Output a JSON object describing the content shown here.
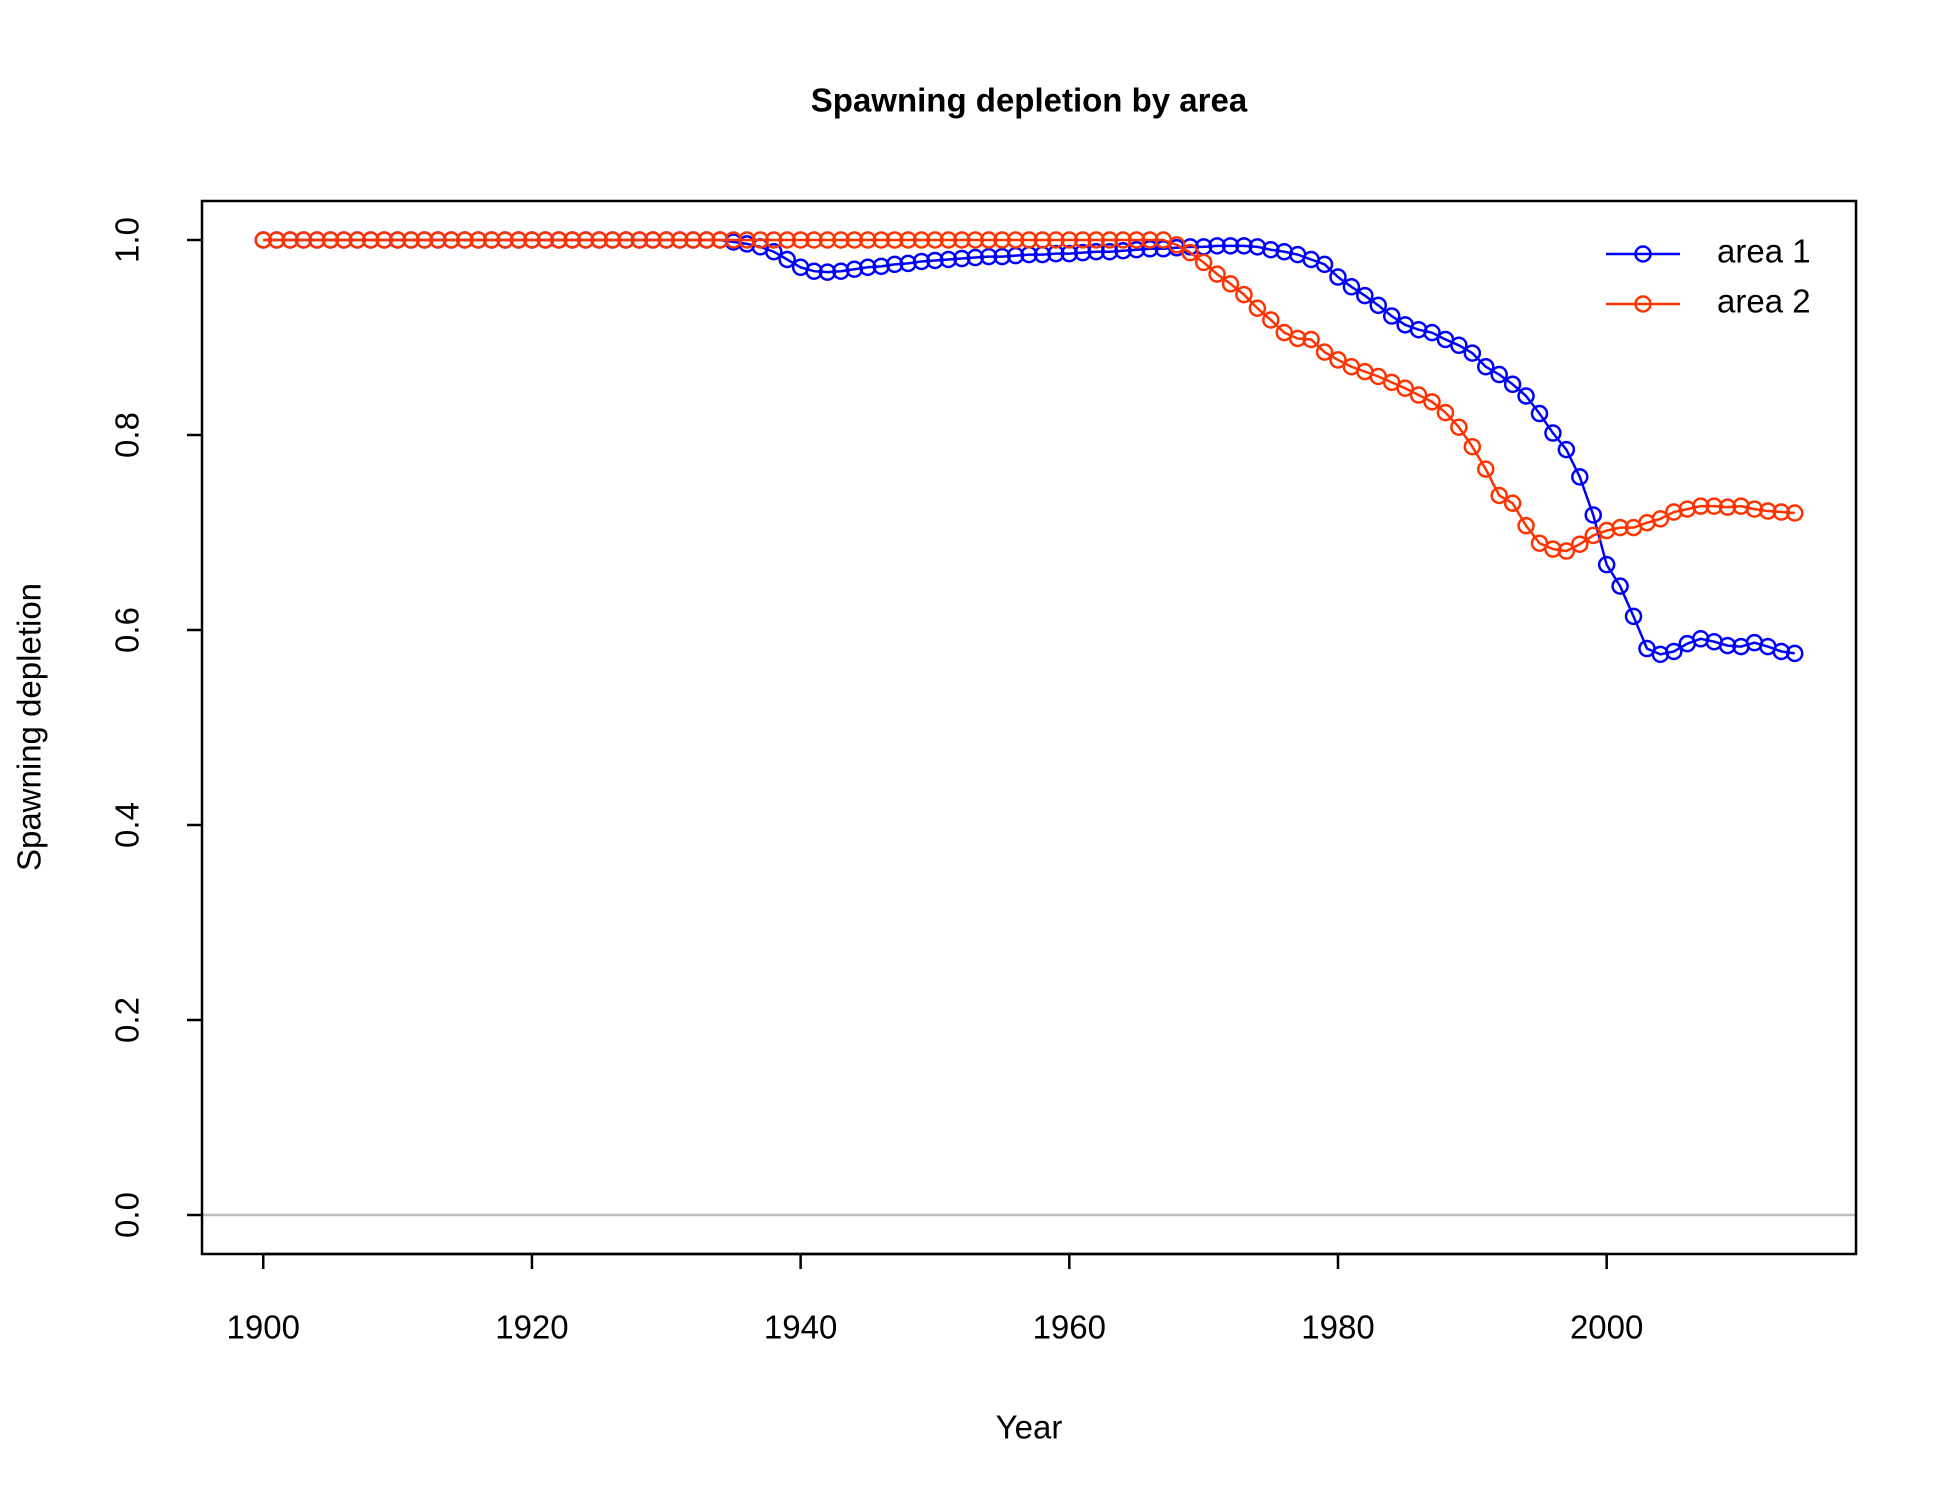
{
  "chart_data": {
    "type": "line",
    "title": "Spawning depletion by area",
    "x_label": "Year",
    "y_label": "Spawning depletion",
    "x": [
      1900,
      1901,
      1902,
      1903,
      1904,
      1905,
      1906,
      1907,
      1908,
      1909,
      1910,
      1911,
      1912,
      1913,
      1914,
      1915,
      1916,
      1917,
      1918,
      1919,
      1920,
      1921,
      1922,
      1923,
      1924,
      1925,
      1926,
      1927,
      1928,
      1929,
      1930,
      1931,
      1932,
      1933,
      1934,
      1935,
      1936,
      1937,
      1938,
      1939,
      1940,
      1941,
      1942,
      1943,
      1944,
      1945,
      1946,
      1947,
      1948,
      1949,
      1950,
      1951,
      1952,
      1953,
      1954,
      1955,
      1956,
      1957,
      1958,
      1959,
      1960,
      1961,
      1962,
      1963,
      1964,
      1965,
      1966,
      1967,
      1968,
      1969,
      1970,
      1971,
      1972,
      1973,
      1974,
      1975,
      1976,
      1977,
      1978,
      1979,
      1980,
      1981,
      1982,
      1983,
      1984,
      1985,
      1986,
      1987,
      1988,
      1989,
      1990,
      1991,
      1992,
      1993,
      1994,
      1995,
      1996,
      1997,
      1998,
      1999,
      2000,
      2001,
      2002,
      2003,
      2004,
      2005,
      2006,
      2007,
      2008,
      2009,
      2010,
      2011,
      2012,
      2013,
      2014
    ],
    "series": [
      {
        "name": "area 1",
        "color": "#0000ff",
        "values": [
          1,
          1,
          1,
          1,
          1,
          1,
          1,
          1,
          1,
          1,
          1,
          1,
          1,
          1,
          1,
          1,
          1,
          1,
          1,
          1,
          1,
          1,
          1,
          1,
          1,
          1,
          1,
          1,
          1,
          1,
          1,
          1,
          1,
          1,
          1,
          0.998,
          0.996,
          0.993,
          0.988,
          0.98,
          0.972,
          0.968,
          0.967,
          0.968,
          0.97,
          0.972,
          0.973,
          0.975,
          0.976,
          0.978,
          0.979,
          0.98,
          0.981,
          0.982,
          0.983,
          0.983,
          0.984,
          0.985,
          0.985,
          0.986,
          0.986,
          0.987,
          0.988,
          0.988,
          0.989,
          0.99,
          0.991,
          0.991,
          0.992,
          0.993,
          0.993,
          0.994,
          0.994,
          0.994,
          0.993,
          0.99,
          0.988,
          0.985,
          0.98,
          0.975,
          0.962,
          0.952,
          0.943,
          0.933,
          0.922,
          0.913,
          0.908,
          0.905,
          0.898,
          0.892,
          0.884,
          0.87,
          0.862,
          0.852,
          0.84,
          0.822,
          0.802,
          0.785,
          0.757,
          0.718,
          0.667,
          0.645,
          0.614,
          0.581,
          0.575,
          0.578,
          0.586,
          0.591,
          0.588,
          0.584,
          0.583,
          0.587,
          0.583,
          0.578,
          0.576
        ]
      },
      {
        "name": "area 2",
        "color": "#ff3300",
        "values": [
          1,
          1,
          1,
          1,
          1,
          1,
          1,
          1,
          1,
          1,
          1,
          1,
          1,
          1,
          1,
          1,
          1,
          1,
          1,
          1,
          1,
          1,
          1,
          1,
          1,
          1,
          1,
          1,
          1,
          1,
          1,
          1,
          1,
          1,
          1,
          1,
          1,
          1,
          1,
          1,
          1,
          1,
          1,
          1,
          1,
          1,
          1,
          1,
          1,
          1,
          1,
          1,
          1,
          1,
          1,
          1,
          1,
          1,
          1,
          1,
          1,
          1,
          1,
          1,
          1,
          1,
          1,
          1,
          0.995,
          0.987,
          0.977,
          0.965,
          0.955,
          0.944,
          0.93,
          0.918,
          0.905,
          0.899,
          0.898,
          0.885,
          0.877,
          0.87,
          0.865,
          0.86,
          0.854,
          0.848,
          0.841,
          0.834,
          0.823,
          0.808,
          0.788,
          0.765,
          0.738,
          0.73,
          0.707,
          0.689,
          0.683,
          0.681,
          0.688,
          0.697,
          0.702,
          0.705,
          0.705,
          0.71,
          0.714,
          0.721,
          0.724,
          0.727,
          0.727,
          0.726,
          0.727,
          0.724,
          0.722,
          0.721,
          0.72
        ]
      }
    ],
    "xlim": [
      1895.44,
      2018.56
    ],
    "xticks": [
      1900,
      1920,
      1940,
      1960,
      1980,
      2000
    ],
    "ylim": [
      -0.04,
      1.04
    ],
    "yticks": [
      {
        "value": 0,
        "label": "0.0"
      },
      0.2,
      0.4,
      0.6,
      0.8,
      {
        "value": 1,
        "label": "1.0"
      }
    ],
    "reference_line": 0,
    "legend": "topright"
  }
}
